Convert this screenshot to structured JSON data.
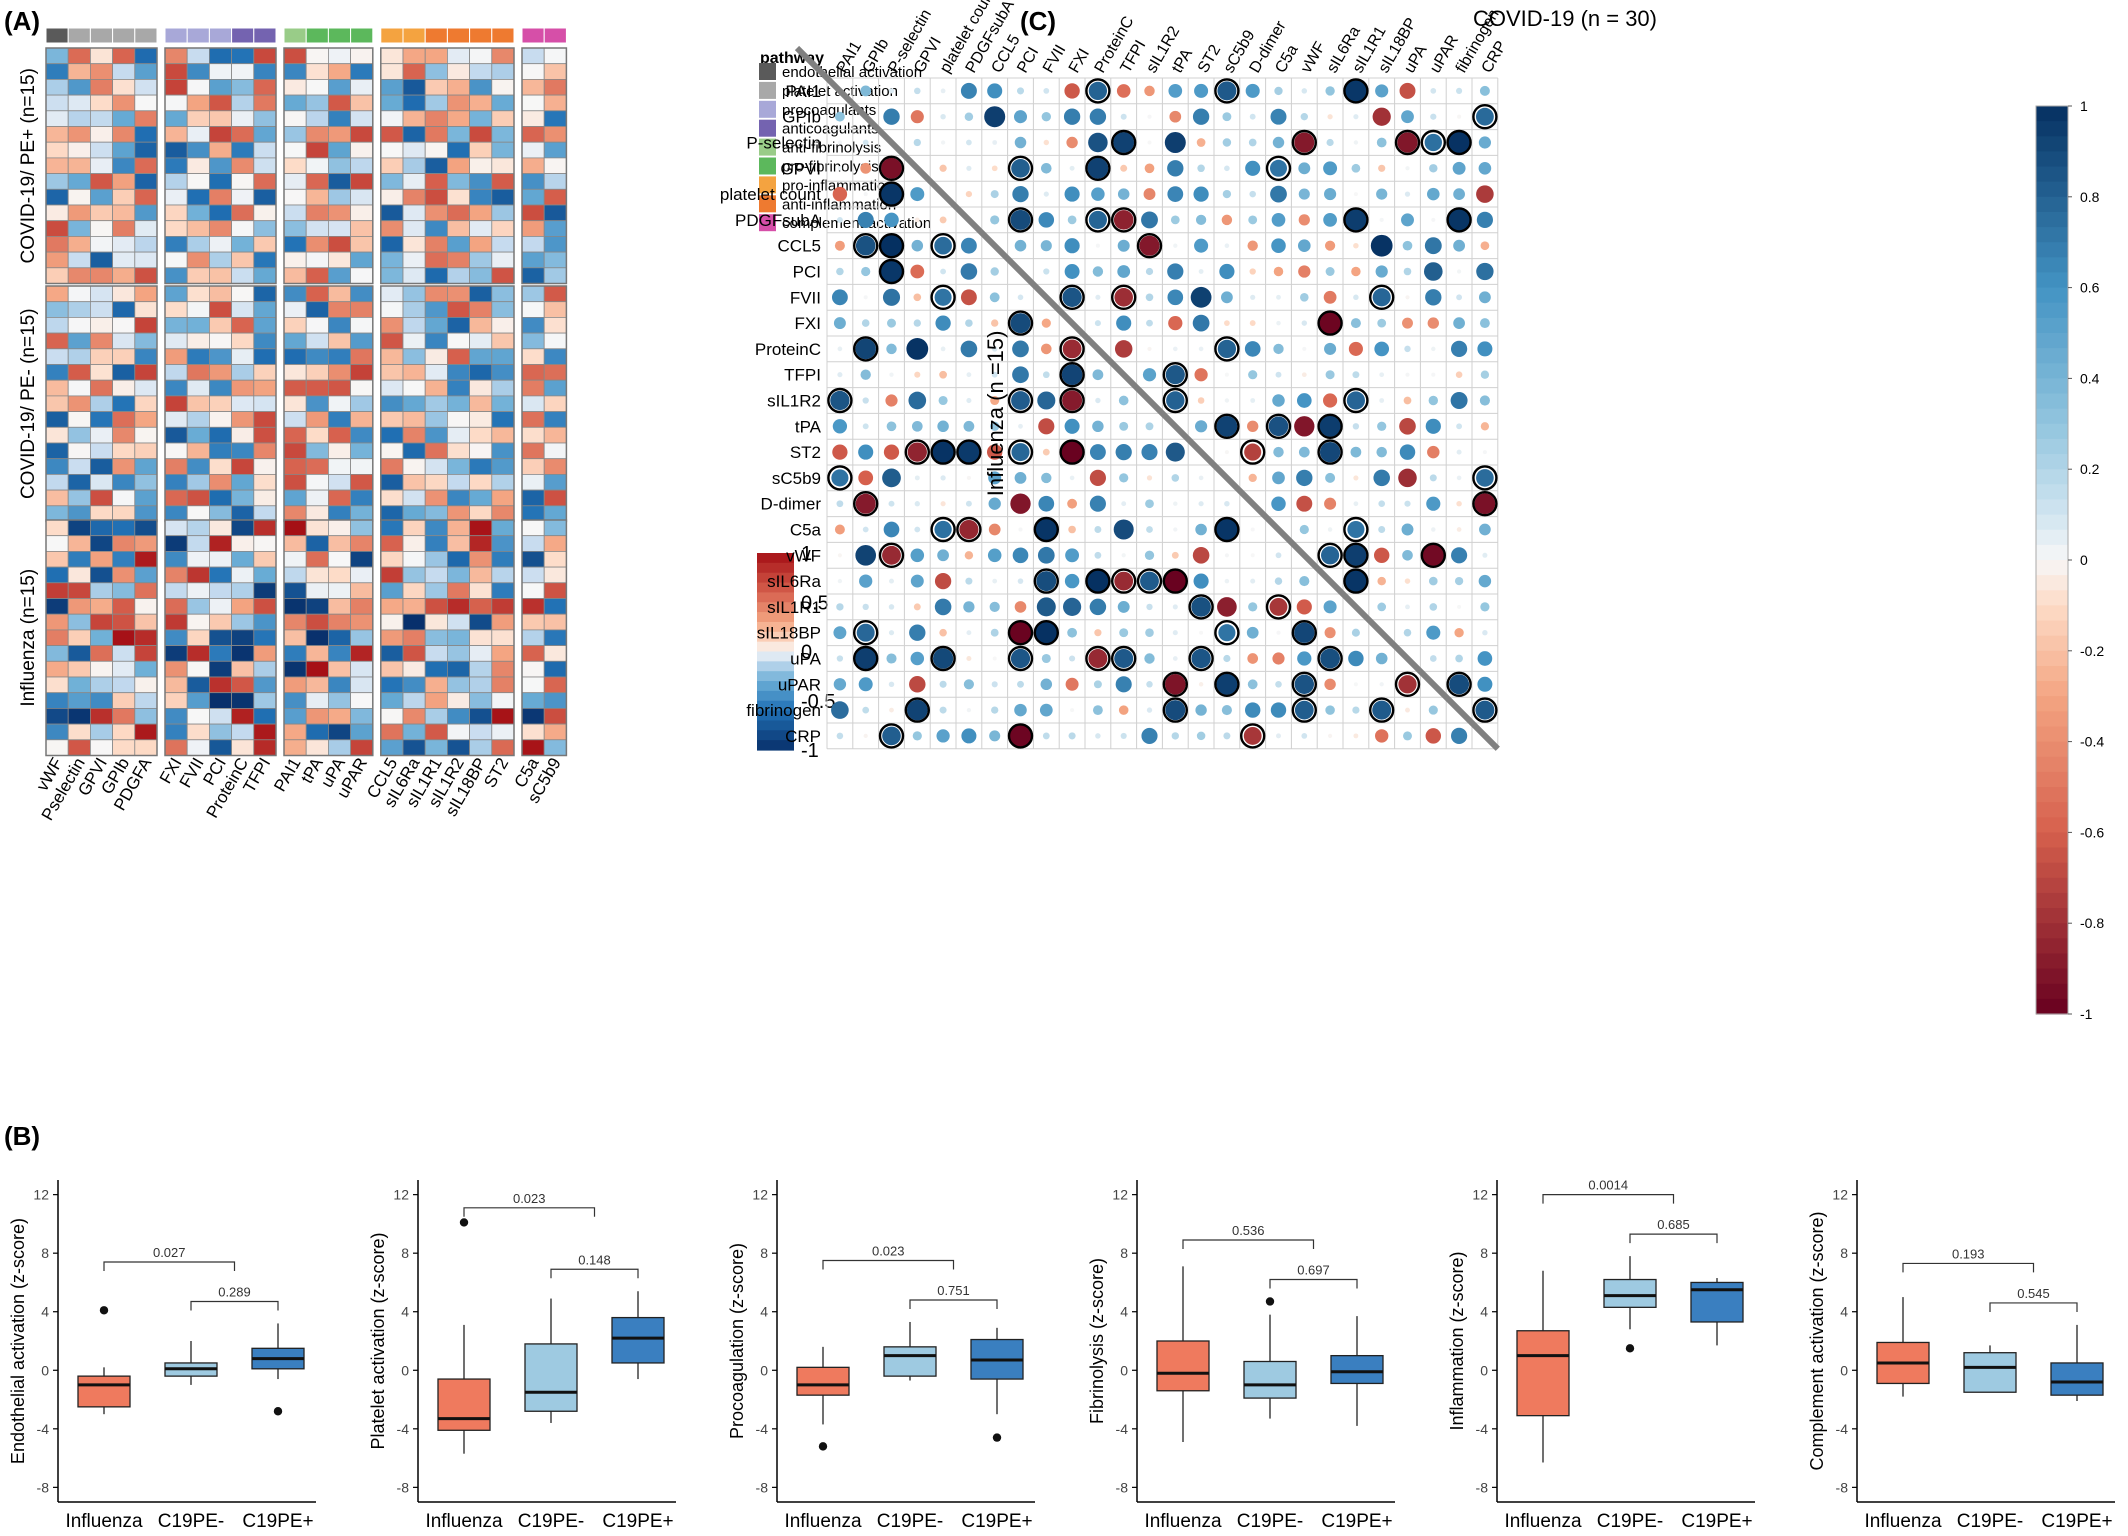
{
  "panel_labels": {
    "a": "(A)",
    "b": "(B)",
    "c": "(C)"
  },
  "chart_data": [
    {
      "type": "heatmap",
      "id": "A",
      "variables": [
        "vWF",
        "Pselectin",
        "GPVI",
        "GPIb",
        "PDGFA",
        "FXI",
        "FVII",
        "PCI",
        "ProteinC",
        "TFPI",
        "PAI1",
        "tPA",
        "uPA",
        "uPAR",
        "CCL5",
        "sIL6Ra",
        "sIL1R1",
        "sIL1R2",
        "sIL18BP",
        "ST2",
        "C5a",
        "sC5b9"
      ],
      "groups": [
        "COVID-19/ PE+ (n=15)",
        "COVID-19/ PE- (n=15)",
        "Influenza (n=15)"
      ],
      "legend_title": "pathway",
      "pathways": [
        {
          "name": "endothelial activation",
          "color": "#5a5a5a",
          "n": 1
        },
        {
          "name": "platelet activation",
          "color": "#a8a8a8",
          "n": 4
        },
        {
          "name": "procoagulants",
          "color": "#a8a8d8",
          "n": 3
        },
        {
          "name": "anticoagulants",
          "color": "#7463b0",
          "n": 2
        },
        {
          "name": "anti-fibrinolysis",
          "color": "#99cc88",
          "n": 1
        },
        {
          "name": "pro-fibrinolysis",
          "color": "#5cb85c",
          "n": 3
        },
        {
          "name": "pro-inflammation",
          "color": "#f4a340",
          "n": 2
        },
        {
          "name": "anti-inflammation",
          "color": "#ee7a30",
          "n": 4
        },
        {
          "name": "complement activation",
          "color": "#d64fa8",
          "n": 2
        }
      ],
      "colorbar_ticks": [
        "1",
        "0.5",
        "0",
        "-0.5",
        "-1"
      ],
      "colorbar_range": [
        -1,
        1
      ]
    },
    {
      "type": "box",
      "id": "B",
      "categories": [
        "Influenza",
        "C19PE-",
        "C19PE+"
      ],
      "colors": [
        "#ef7a5e",
        "#9ecae1",
        "#3a7fc0"
      ],
      "yticks": [
        "12",
        "8",
        "4",
        "0",
        "-4",
        "-8"
      ],
      "ylim": [
        -9,
        13
      ],
      "plots": [
        {
          "ylabel": "Endothelial activation (z-score)",
          "boxes": [
            {
              "q1": -2.5,
              "med": -1.0,
              "q3": -0.4,
              "lo": -3.0,
              "hi": 0.2,
              "out": [
                4.1
              ]
            },
            {
              "q1": -0.4,
              "med": 0.1,
              "q3": 0.5,
              "lo": -1.0,
              "hi": 2.0,
              "out": []
            },
            {
              "q1": 0.1,
              "med": 0.8,
              "q3": 1.5,
              "lo": -0.6,
              "hi": 3.2,
              "out": [
                -2.8
              ]
            }
          ],
          "brackets": [
            {
              "label": "0.027",
              "level": "upper"
            },
            {
              "label": "0.289",
              "level": "lower"
            }
          ]
        },
        {
          "ylabel": "Platelet activation (z-score)",
          "boxes": [
            {
              "q1": -4.1,
              "med": -3.3,
              "q3": -0.6,
              "lo": -5.7,
              "hi": 3.1,
              "out": [
                10.1
              ]
            },
            {
              "q1": -2.8,
              "med": -1.5,
              "q3": 1.8,
              "lo": -3.6,
              "hi": 4.9,
              "out": []
            },
            {
              "q1": 0.5,
              "med": 2.2,
              "q3": 3.6,
              "lo": -0.6,
              "hi": 5.4,
              "out": []
            }
          ],
          "brackets": [
            {
              "label": "0.023",
              "level": "upper"
            },
            {
              "label": "0.148",
              "level": "lower"
            }
          ]
        },
        {
          "ylabel": "Procoagulation (z-score)",
          "boxes": [
            {
              "q1": -1.7,
              "med": -1.0,
              "q3": 0.2,
              "lo": -3.7,
              "hi": 1.6,
              "out": [
                -5.2
              ]
            },
            {
              "q1": -0.4,
              "med": 1.0,
              "q3": 1.6,
              "lo": -0.7,
              "hi": 3.3,
              "out": []
            },
            {
              "q1": -0.6,
              "med": 0.7,
              "q3": 2.1,
              "lo": -3.0,
              "hi": 2.9,
              "out": [
                -4.6
              ]
            }
          ],
          "brackets": [
            {
              "label": "0.023",
              "level": "upper"
            },
            {
              "label": "0.751",
              "level": "lower"
            }
          ]
        },
        {
          "ylabel": "Fibrinolysis (z-score)",
          "boxes": [
            {
              "q1": -1.4,
              "med": -0.2,
              "q3": 2.0,
              "lo": -4.9,
              "hi": 7.1,
              "out": []
            },
            {
              "q1": -1.9,
              "med": -1.0,
              "q3": 0.6,
              "lo": -3.3,
              "hi": 3.8,
              "out": [
                4.7
              ]
            },
            {
              "q1": -0.9,
              "med": -0.1,
              "q3": 1.0,
              "lo": -3.8,
              "hi": 3.7,
              "out": []
            }
          ],
          "brackets": [
            {
              "label": "0.536",
              "level": "upper"
            },
            {
              "label": "0.697",
              "level": "lower"
            }
          ]
        },
        {
          "ylabel": "Inflammation (z-score)",
          "boxes": [
            {
              "q1": -3.1,
              "med": 1.0,
              "q3": 2.7,
              "lo": -6.3,
              "hi": 6.8,
              "out": []
            },
            {
              "q1": 4.3,
              "med": 5.1,
              "q3": 6.2,
              "lo": 2.8,
              "hi": 7.8,
              "out": [
                1.5
              ]
            },
            {
              "q1": 3.3,
              "med": 5.5,
              "q3": 6.0,
              "lo": 1.7,
              "hi": 6.3,
              "out": []
            }
          ],
          "brackets": [
            {
              "label": "0.0014",
              "level": "upper"
            },
            {
              "label": "0.685",
              "level": "lower"
            }
          ]
        },
        {
          "ylabel": "Complement activation (z-score)",
          "boxes": [
            {
              "q1": -0.9,
              "med": 0.5,
              "q3": 1.9,
              "lo": -1.8,
              "hi": 5.0,
              "out": []
            },
            {
              "q1": -1.5,
              "med": 0.2,
              "q3": 1.2,
              "lo": -1.5,
              "hi": 1.7,
              "out": []
            },
            {
              "q1": -1.7,
              "med": -0.8,
              "q3": 0.5,
              "lo": -2.1,
              "hi": 3.1,
              "out": []
            }
          ],
          "brackets": [
            {
              "label": "0.193",
              "level": "upper"
            },
            {
              "label": "0.545",
              "level": "lower"
            }
          ]
        }
      ]
    },
    {
      "type": "heatmap",
      "id": "C",
      "title": "COVID-19 (n = 30)",
      "ylabel": "Influenza (n =15)",
      "variables": [
        "PAI1",
        "GPIb",
        "P-selectin",
        "GPVI",
        "platelet count",
        "PDGFsubA",
        "CCL5",
        "PCI",
        "FVII",
        "FXI",
        "ProteinC",
        "TFPI",
        "sIL1R2",
        "tPA",
        "ST2",
        "sC5b9",
        "D-dimer",
        "C5a",
        "vWF",
        "sIL6Ra",
        "sIL1R1",
        "sIL18BP",
        "uPA",
        "uPAR",
        "fibrinogen",
        "CRP"
      ],
      "colorbar_ticks": [
        "1",
        "0.8",
        "0.6",
        "0.4",
        "0.2",
        "0",
        "-0.2",
        "-0.4",
        "-0.6",
        "-0.8",
        "-1"
      ],
      "colorbar_range": [
        -1,
        1
      ]
    }
  ]
}
